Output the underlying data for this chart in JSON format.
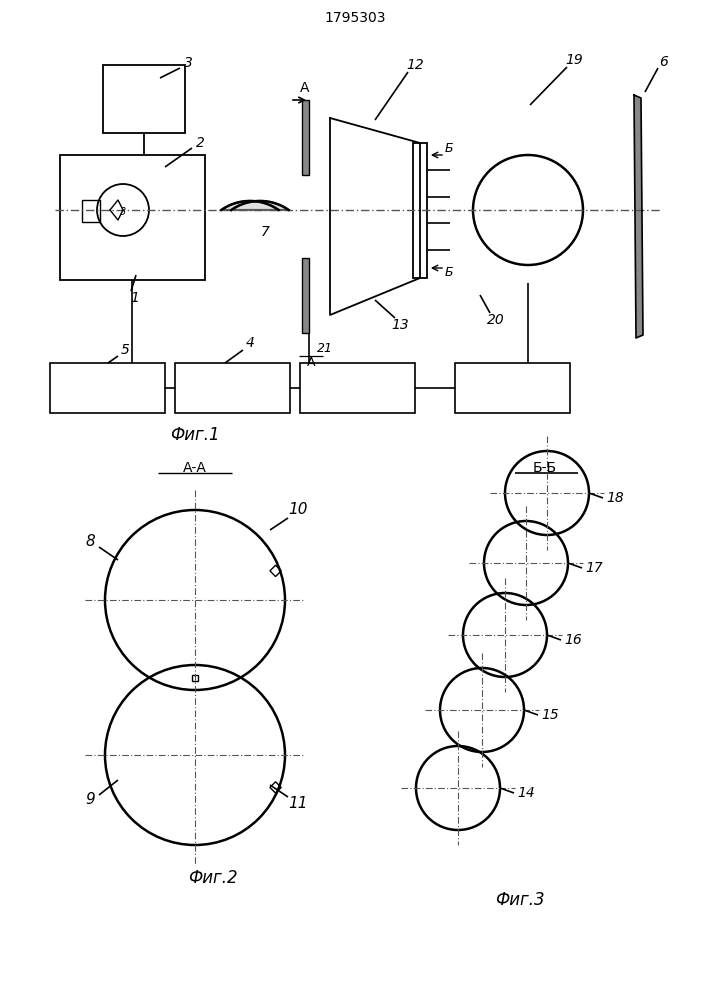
{
  "title": "1795303",
  "background_color": "#ffffff",
  "line_color": "#000000",
  "fig1_label": "Фиг.1",
  "fig2_label": "Фиг.2",
  "fig3_label": "Фиг.3",
  "aa_label": "А-А",
  "bb_label": "Б-Б"
}
